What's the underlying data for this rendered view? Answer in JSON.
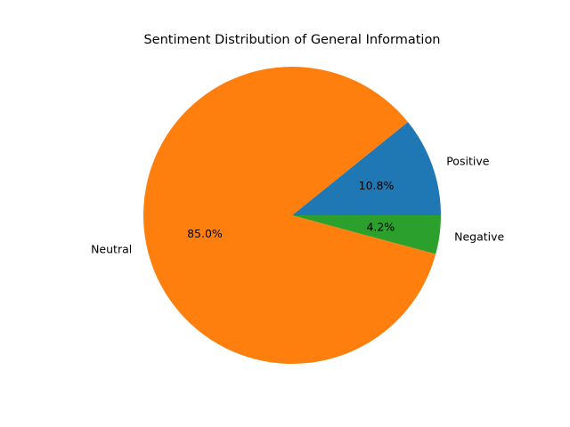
{
  "chart_data": {
    "type": "pie",
    "title": "Sentiment Distribution of General Information",
    "labels": [
      "Positive",
      "Neutral",
      "Negative"
    ],
    "values": [
      10.8,
      85.0,
      4.2
    ],
    "autopct": [
      "10.8%",
      "85.0%",
      "4.2%"
    ],
    "colors": [
      "#1f77b4",
      "#ff7f0e",
      "#2ca02c"
    ],
    "start_angle_deg": 0,
    "direction": "counterclockwise",
    "legend": "none"
  }
}
